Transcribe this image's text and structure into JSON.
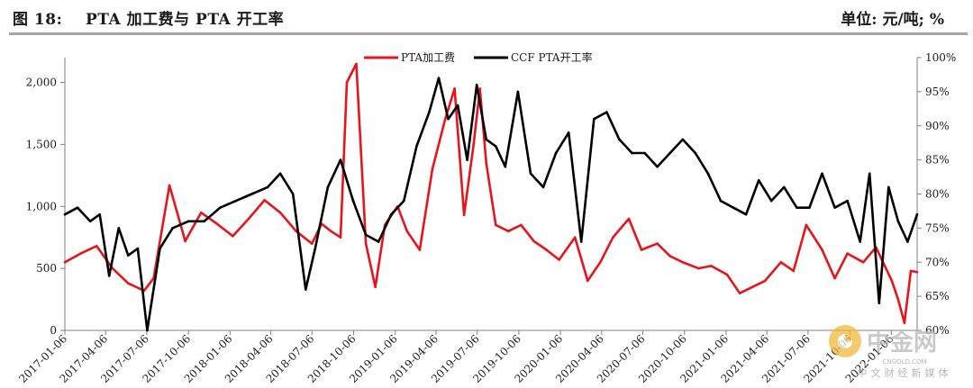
{
  "header": {
    "figure_title": "图 18:    PTA 加工费与 PTA 开工率",
    "unit": "单位: 元/吨; %"
  },
  "watermark": {
    "logo_text": "中金网",
    "domain": "CNGOLD.COM",
    "tagline": "中文财经新媒体"
  },
  "colors": {
    "series1": "#e8141b",
    "series2": "#000000",
    "axis": "#808080",
    "rule": "#a6a6a6"
  },
  "chart_data": {
    "type": "line",
    "grid": false,
    "legend_position": "top-center",
    "y_left": {
      "min": 0,
      "max": 2200,
      "ticks": [
        0,
        500,
        1000,
        1500,
        2000
      ],
      "tick_labels": [
        "0",
        "500",
        "1,000",
        "1,500",
        "2,000"
      ]
    },
    "y_right": {
      "min": 60,
      "max": 100,
      "ticks": [
        60,
        65,
        70,
        75,
        80,
        85,
        90,
        95,
        100
      ],
      "tick_labels": [
        "60%",
        "65%",
        "70%",
        "75%",
        "80%",
        "85%",
        "90%",
        "95%",
        "100%"
      ]
    },
    "x_ticks": [
      "2017-01-06",
      "2017-04-06",
      "2017-07-06",
      "2017-10-06",
      "2018-01-06",
      "2018-04-06",
      "2018-07-06",
      "2018-10-06",
      "2019-01-06",
      "2019-04-06",
      "2019-07-06",
      "2019-10-06",
      "2020-01-06",
      "2020-04-06",
      "2020-07-06",
      "2020-10-06",
      "2021-01-06",
      "2021-04-06",
      "2021-07-06",
      "2021-10-06",
      "2022-01-06"
    ],
    "series": [
      {
        "name": "PTA加工费",
        "axis": "left",
        "color": "#e8141b",
        "x": [
          "2017-01-06",
          "2017-02-10",
          "2017-03-17",
          "2017-04-21",
          "2017-05-26",
          "2017-06-30",
          "2017-07-21",
          "2017-08-25",
          "2017-09-29",
          "2017-11-03",
          "2017-12-08",
          "2018-01-12",
          "2018-02-16",
          "2018-03-23",
          "2018-04-27",
          "2018-06-01",
          "2018-07-06",
          "2018-07-27",
          "2018-08-17",
          "2018-09-07",
          "2018-09-21",
          "2018-10-12",
          "2018-11-02",
          "2018-11-23",
          "2018-12-14",
          "2019-01-11",
          "2019-02-01",
          "2019-03-01",
          "2019-03-29",
          "2019-04-26",
          "2019-05-17",
          "2019-06-07",
          "2019-06-28",
          "2019-07-12",
          "2019-07-26",
          "2019-08-16",
          "2019-09-13",
          "2019-10-11",
          "2019-11-08",
          "2019-12-06",
          "2020-01-03",
          "2020-02-07",
          "2020-03-06",
          "2020-04-03",
          "2020-05-01",
          "2020-06-05",
          "2020-07-03",
          "2020-08-07",
          "2020-09-04",
          "2020-10-02",
          "2020-11-06",
          "2020-12-04",
          "2021-01-08",
          "2021-02-05",
          "2021-03-05",
          "2021-04-02",
          "2021-05-07",
          "2021-06-04",
          "2021-07-02",
          "2021-08-06",
          "2021-09-03",
          "2021-10-01",
          "2021-11-05",
          "2021-12-03",
          "2022-01-07",
          "2022-01-21",
          "2022-02-04",
          "2022-02-18",
          "2022-03-04"
        ],
        "values": [
          550,
          620,
          680,
          500,
          380,
          320,
          420,
          1170,
          720,
          950,
          860,
          760,
          900,
          1050,
          950,
          800,
          700,
          860,
          800,
          750,
          2000,
          2150,
          700,
          350,
          850,
          1000,
          800,
          650,
          1300,
          1700,
          1950,
          930,
          1500,
          1950,
          1350,
          850,
          800,
          850,
          720,
          650,
          570,
          750,
          400,
          550,
          750,
          900,
          650,
          700,
          600,
          550,
          500,
          520,
          450,
          300,
          350,
          400,
          550,
          480,
          850,
          650,
          420,
          620,
          550,
          670,
          400,
          250,
          60,
          480,
          470
        ]
      },
      {
        "name": "CCF PTA开工率",
        "axis": "right",
        "color": "#000000",
        "x": [
          "2017-01-06",
          "2017-02-03",
          "2017-03-03",
          "2017-03-24",
          "2017-04-14",
          "2017-05-05",
          "2017-05-26",
          "2017-06-16",
          "2017-07-07",
          "2017-08-04",
          "2017-09-01",
          "2017-10-06",
          "2017-11-10",
          "2017-12-15",
          "2018-01-19",
          "2018-02-23",
          "2018-03-30",
          "2018-04-27",
          "2018-05-25",
          "2018-06-22",
          "2018-07-13",
          "2018-08-10",
          "2018-09-07",
          "2018-10-05",
          "2018-11-02",
          "2018-11-30",
          "2018-12-28",
          "2019-01-25",
          "2019-02-22",
          "2019-03-22",
          "2019-04-12",
          "2019-05-03",
          "2019-05-24",
          "2019-06-14",
          "2019-07-05",
          "2019-07-26",
          "2019-08-16",
          "2019-09-06",
          "2019-10-04",
          "2019-11-01",
          "2019-11-29",
          "2019-12-27",
          "2020-01-24",
          "2020-02-21",
          "2020-03-20",
          "2020-04-17",
          "2020-05-15",
          "2020-06-12",
          "2020-07-10",
          "2020-08-07",
          "2020-09-04",
          "2020-10-02",
          "2020-10-30",
          "2020-11-27",
          "2020-12-25",
          "2021-01-22",
          "2021-02-19",
          "2021-03-19",
          "2021-04-16",
          "2021-05-14",
          "2021-06-11",
          "2021-07-09",
          "2021-08-06",
          "2021-09-03",
          "2021-10-01",
          "2021-10-29",
          "2021-11-19",
          "2021-12-10",
          "2021-12-31",
          "2022-01-21",
          "2022-02-11",
          "2022-03-04"
        ],
        "values": [
          77,
          78,
          76,
          77,
          68,
          75,
          71,
          72,
          60,
          72,
          75,
          76,
          76,
          78,
          79,
          80,
          81,
          83,
          80,
          66,
          72,
          81,
          85,
          79,
          74,
          73,
          77,
          79,
          87,
          92,
          97,
          91,
          93,
          85,
          96,
          88,
          87,
          84,
          95,
          83,
          81,
          86,
          89,
          73,
          91,
          92,
          88,
          86,
          86,
          84,
          86,
          88,
          86,
          83,
          79,
          78,
          77,
          82,
          79,
          81,
          78,
          78,
          83,
          78,
          79,
          73,
          83,
          64,
          81,
          76,
          73,
          77
        ]
      }
    ]
  }
}
